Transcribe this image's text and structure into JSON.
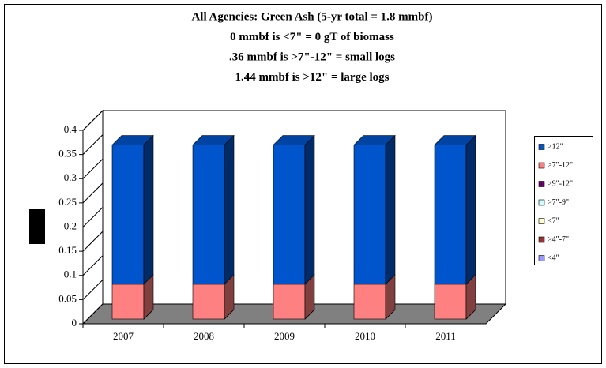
{
  "chart_data": {
    "type": "bar3d_stacked",
    "title": [
      "All Agencies: Green Ash (5-yr total = 1.8 mmbf)",
      "0 mmbf is <7\" = 0 gT of biomass",
      ".36 mmbf is >7\"-12\" = small logs",
      "1.44 mmbf is >12\" = large logs"
    ],
    "categories": [
      "2007",
      "2008",
      "2009",
      "2010",
      "2011"
    ],
    "series": [
      {
        "name": "<4\"",
        "color": "#9999ff",
        "values": [
          0,
          0,
          0,
          0,
          0
        ]
      },
      {
        "name": ">4\"-7\"",
        "color": "#993333",
        "values": [
          0,
          0,
          0,
          0,
          0
        ]
      },
      {
        "name": "<7\"",
        "color": "#ffffcc",
        "values": [
          0,
          0,
          0,
          0,
          0
        ]
      },
      {
        "name": ">7\"-9\"",
        "color": "#ccffff",
        "values": [
          0,
          0,
          0,
          0,
          0
        ]
      },
      {
        "name": ">9\"-12\"",
        "color": "#660066",
        "values": [
          0,
          0,
          0,
          0,
          0
        ]
      },
      {
        "name": ">7\"-12\"",
        "color": "#ff8080",
        "values": [
          0.072,
          0.072,
          0.072,
          0.072,
          0.072
        ]
      },
      {
        "name": ">12\"",
        "color": "#0055cc",
        "values": [
          0.288,
          0.288,
          0.288,
          0.288,
          0.288
        ]
      }
    ],
    "ylim": [
      0,
      0.4
    ],
    "yticks": [
      0,
      0.05,
      0.1,
      0.15,
      0.2,
      0.25,
      0.3,
      0.35,
      0.4
    ],
    "legend": "right"
  }
}
